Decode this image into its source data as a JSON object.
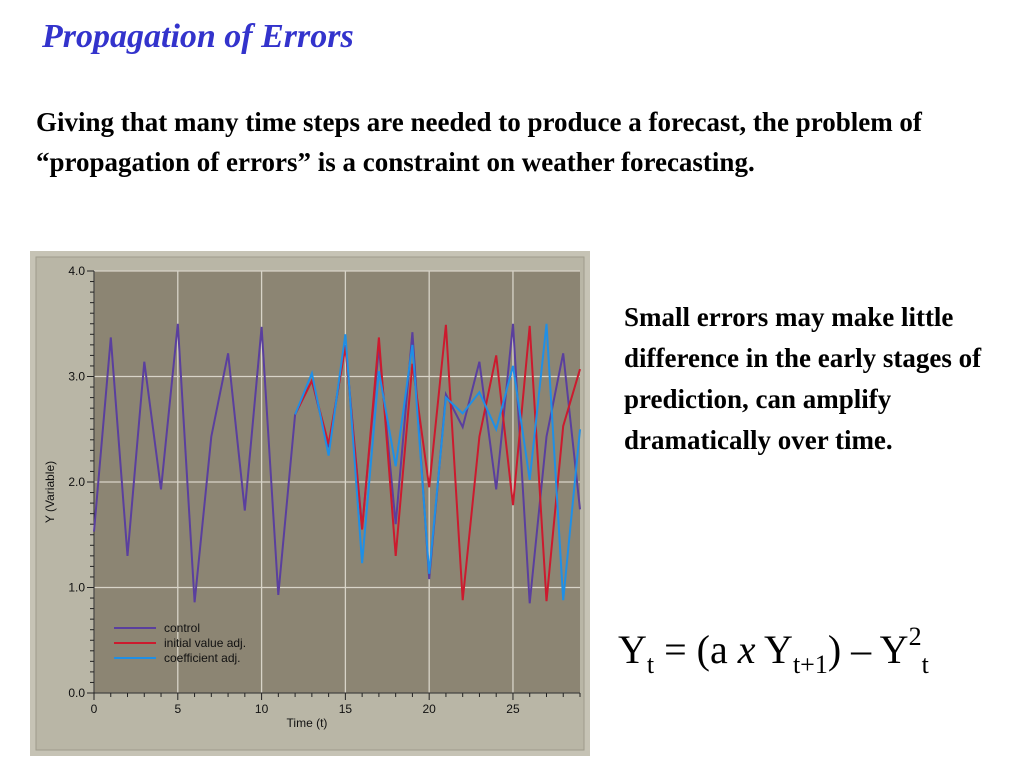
{
  "slide": {
    "title": "Propagation of Errors",
    "intro": "Giving that many time steps are needed to produce a forecast, the problem of “propagation of errors” is a constraint on weather forecasting.",
    "side_text": "Small errors may make little difference in the early stages of prediction, can amplify dramatically over time.",
    "formula": {
      "lhs": "Y",
      "lhs_sub": "t",
      "eq": " = (a ",
      "times": "x",
      "y2": " Y",
      "y2_sub": "t+1",
      "minus": ") – Y",
      "sup": "2",
      "last_sub": "t"
    }
  },
  "chart_data": {
    "type": "line",
    "title": "",
    "xlabel": "Time (t)",
    "ylabel": "Y (Variable)",
    "xlim": [
      0,
      29
    ],
    "ylim": [
      0,
      4
    ],
    "x_ticks": [
      0,
      5,
      10,
      15,
      20,
      25
    ],
    "y_ticks": [
      "0.0",
      "1.0",
      "2.0",
      "3.0",
      "4.0"
    ],
    "grid": true,
    "legend_position": "bottom-left",
    "colors": {
      "frame": "#b9b6a6",
      "plot_background": "#8c8573",
      "grid": "#d8d4c8"
    },
    "series": [
      {
        "name": "control",
        "color": "#5a3f9e",
        "x": [
          0,
          1,
          2,
          3,
          4,
          5,
          6,
          7,
          8,
          9,
          10,
          11,
          12,
          13,
          14,
          15,
          16,
          17,
          18,
          19,
          20,
          21,
          22,
          23,
          24,
          25,
          26,
          27,
          28,
          29
        ],
        "y": [
          1.53,
          3.37,
          1.3,
          3.14,
          1.93,
          3.5,
          0.86,
          2.43,
          3.22,
          1.73,
          3.47,
          0.93,
          2.64,
          2.96,
          2.33,
          3.3,
          1.57,
          3.28,
          1.6,
          3.42,
          1.08,
          2.83,
          2.52,
          3.14,
          1.93,
          3.5,
          0.85,
          2.43,
          3.22,
          1.74
        ]
      },
      {
        "name": "initial value adj.",
        "color": "#cc1a2e",
        "x": [
          12,
          13,
          14,
          15,
          16,
          17,
          18,
          19,
          20,
          21,
          22,
          23,
          24,
          25,
          26,
          27,
          28,
          29
        ],
        "y": [
          2.64,
          2.96,
          2.36,
          3.28,
          1.55,
          3.37,
          1.3,
          3.12,
          1.95,
          3.49,
          0.88,
          2.43,
          3.2,
          1.78,
          3.48,
          0.87,
          2.53,
          3.07
        ]
      },
      {
        "name": "coefficient adj.",
        "color": "#1f8fe6",
        "x": [
          12,
          13,
          14,
          15,
          16,
          17,
          18,
          19,
          20,
          21,
          22,
          23,
          24,
          25,
          26,
          27,
          28,
          29
        ],
        "y": [
          2.64,
          3.03,
          2.25,
          3.4,
          1.23,
          3.05,
          2.15,
          3.3,
          1.13,
          2.8,
          2.65,
          2.85,
          2.5,
          3.1,
          2.02,
          3.5,
          0.88,
          2.5
        ]
      }
    ]
  }
}
